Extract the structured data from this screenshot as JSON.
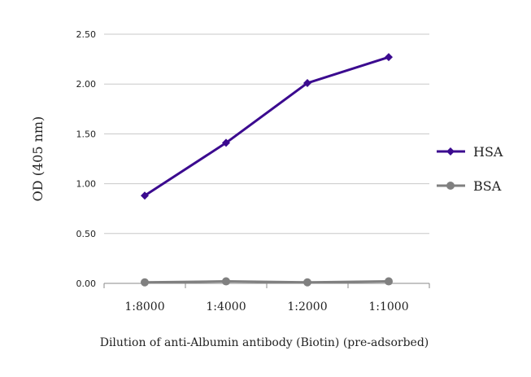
{
  "chart_data": {
    "type": "line",
    "title": "",
    "xlabel": "Dilution of anti-Albumin antibody (Biotin) (pre-adsorbed)",
    "ylabel": "OD (405 nm)",
    "categories": [
      "1:8000",
      "1:4000",
      "1:2000",
      "1:1000"
    ],
    "y_ticks": [
      "0.00",
      "0.50",
      "1.00",
      "1.50",
      "2.00",
      "2.50"
    ],
    "ylim": [
      0,
      2.5
    ],
    "grid": true,
    "legend_position": "right",
    "series": [
      {
        "name": "HSA",
        "values": [
          0.88,
          1.41,
          2.01,
          2.27
        ],
        "color": "#3b0a8f",
        "marker": "diamond"
      },
      {
        "name": "BSA",
        "values": [
          0.01,
          0.02,
          0.01,
          0.02
        ],
        "color": "#808080",
        "marker": "circle"
      }
    ]
  }
}
